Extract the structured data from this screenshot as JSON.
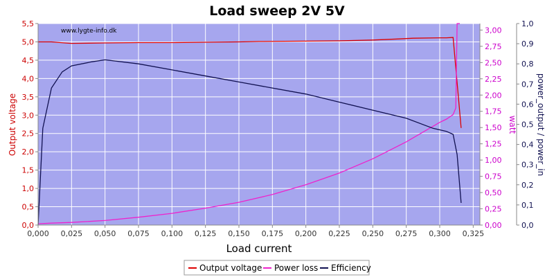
{
  "chart_data": {
    "type": "line",
    "title": "Load sweep 2V 5V",
    "watermark": "www.lygte-info.dk",
    "xlabel": "Load current",
    "y_left_label": "Output voltage",
    "y_right1_label": "watt",
    "y_right2_label": "power_output / power_in",
    "xlim": [
      0,
      0.33
    ],
    "y_left_lim": [
      0,
      5.5
    ],
    "y_right1_lim": [
      0,
      3.1
    ],
    "y_right2_lim": [
      0,
      1.0
    ],
    "x_ticks": [
      "0,000",
      "0,025",
      "0,050",
      "0,075",
      "0,100",
      "0,125",
      "0,150",
      "0,175",
      "0,200",
      "0,225",
      "0,250",
      "0,275",
      "0,300",
      "0,325"
    ],
    "x_tick_values": [
      0,
      0.025,
      0.05,
      0.075,
      0.1,
      0.125,
      0.15,
      0.175,
      0.2,
      0.225,
      0.25,
      0.275,
      0.3,
      0.325
    ],
    "y_left_ticks": [
      "0,0",
      "0,5",
      "1,0",
      "1,5",
      "2,0",
      "2,5",
      "3,0",
      "3,5",
      "4,0",
      "4,5",
      "5,0",
      "5,5"
    ],
    "y_left_tick_values": [
      0,
      0.5,
      1,
      1.5,
      2,
      2.5,
      3,
      3.5,
      4,
      4.5,
      5,
      5.5
    ],
    "y_right1_ticks": [
      "0,00",
      "0,25",
      "0,50",
      "0,75",
      "1,00",
      "1,25",
      "1,50",
      "1,75",
      "2,00",
      "2,25",
      "2,50",
      "2,75",
      "3,00"
    ],
    "y_right1_tick_values": [
      0,
      0.25,
      0.5,
      0.75,
      1,
      1.25,
      1.5,
      1.75,
      2,
      2.25,
      2.5,
      2.75,
      3
    ],
    "y_right2_ticks": [
      "0,0",
      "0,1",
      "0,2",
      "0,3",
      "0,4",
      "0,5",
      "0,6",
      "0,7",
      "0,8",
      "0,9",
      "1,0"
    ],
    "y_right2_tick_values": [
      0,
      0.1,
      0.2,
      0.3,
      0.4,
      0.5,
      0.6,
      0.7,
      0.8,
      0.9,
      1.0
    ],
    "grid": true,
    "legend_position": "bottom",
    "colors": {
      "plot_background": "#a6a6ee",
      "grid": "#ffffff",
      "output_voltage": "#dd0000",
      "power_loss": "#ee22cc",
      "efficiency": "#101050",
      "left_axis": "#cc0000",
      "right1_axis": "#cc00cc",
      "right2_axis": "#101050"
    },
    "series": [
      {
        "name": "Output voltage",
        "axis": "left",
        "x": [
          0,
          0.01,
          0.02,
          0.025,
          0.05,
          0.075,
          0.1,
          0.125,
          0.15,
          0.165,
          0.2,
          0.225,
          0.25,
          0.27,
          0.28,
          0.3,
          0.305,
          0.31,
          0.316
        ],
        "y": [
          5.0,
          5.0,
          4.97,
          4.96,
          4.97,
          4.98,
          4.98,
          4.99,
          5.0,
          5.01,
          5.02,
          5.03,
          5.05,
          5.08,
          5.1,
          5.11,
          5.11,
          5.12,
          2.65
        ]
      },
      {
        "name": "Power loss",
        "axis": "right1",
        "x": [
          0,
          0.01,
          0.025,
          0.05,
          0.075,
          0.1,
          0.125,
          0.15,
          0.175,
          0.2,
          0.225,
          0.25,
          0.275,
          0.3,
          0.305,
          0.31,
          0.312,
          0.313,
          0.315
        ],
        "y": [
          0.02,
          0.03,
          0.04,
          0.07,
          0.12,
          0.18,
          0.26,
          0.35,
          0.47,
          0.62,
          0.8,
          1.02,
          1.28,
          1.58,
          1.63,
          1.7,
          1.8,
          3.1,
          3.1
        ]
      },
      {
        "name": "Efficiency",
        "axis": "right2",
        "x": [
          0,
          0.0035,
          0.01,
          0.018,
          0.025,
          0.04,
          0.05,
          0.075,
          0.1,
          0.125,
          0.15,
          0.175,
          0.2,
          0.225,
          0.25,
          0.275,
          0.295,
          0.305,
          0.31,
          0.313,
          0.316
        ],
        "y": [
          0.0,
          0.48,
          0.68,
          0.76,
          0.79,
          0.81,
          0.82,
          0.8,
          0.77,
          0.74,
          0.71,
          0.68,
          0.65,
          0.61,
          0.57,
          0.53,
          0.48,
          0.465,
          0.45,
          0.35,
          0.11
        ]
      }
    ]
  }
}
